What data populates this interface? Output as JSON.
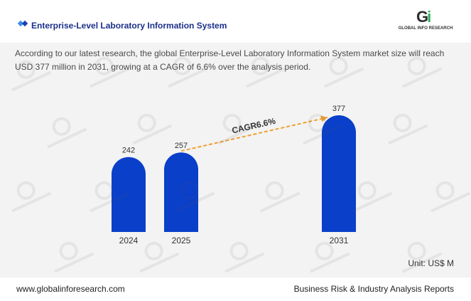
{
  "header": {
    "title": "Enterprise-Level Laboratory Information System",
    "logo_mark": "Gi",
    "logo_text": "GLOBAL INFO RESEARCH"
  },
  "description": "According to our latest research, the global Enterprise-Level Laboratory Information System market size will reach USD 377 million in 2031, growing at a CAGR of 6.6% over the analysis period.",
  "unit_label": "Unit: US$ M",
  "footer": {
    "website": "www.globalinforesearch.com",
    "tagline": "Business Risk & Industry Analysis Reports"
  },
  "colors": {
    "bar": "#0a3fc9",
    "arrow": "#f0a030",
    "panel_bg": "#f3f3f3",
    "title": "#1b2f8a"
  },
  "chart_data": {
    "type": "bar",
    "categories": [
      "2024",
      "2025",
      "2031"
    ],
    "values": [
      242,
      257,
      377
    ],
    "value_labels": [
      "242",
      "257",
      "377"
    ],
    "annotation": "CAGR6.6%",
    "annotation_from": "2025",
    "annotation_to": "2031",
    "ylim": [
      0,
      377
    ]
  }
}
